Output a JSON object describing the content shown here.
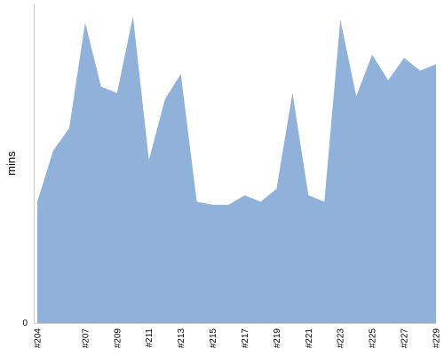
{
  "chart_data": {
    "type": "area",
    "ylabel": "mins",
    "xlabel": "",
    "title": "",
    "grid": false,
    "legend": "none",
    "ylim": [
      0,
      100
    ],
    "y_ticks": [
      0
    ],
    "x_tick_labels": [
      "#204",
      "#207",
      "#209",
      "#211",
      "#213",
      "#215",
      "#217",
      "#219",
      "#221",
      "#223",
      "#225",
      "#227",
      "#229"
    ],
    "x": [
      "#204",
      "#205",
      "#206",
      "#207",
      "#208",
      "#209",
      "#210",
      "#211",
      "#212",
      "#213",
      "#214",
      "#215",
      "#216",
      "#217",
      "#218",
      "#219",
      "#220",
      "#221",
      "#222",
      "#223",
      "#224",
      "#225",
      "#226",
      "#227",
      "#228",
      "#229"
    ],
    "values": [
      38,
      54,
      61,
      94,
      74,
      72,
      96,
      51,
      70,
      78,
      38,
      37,
      37,
      40,
      38,
      42,
      72,
      40,
      38,
      95,
      71,
      84,
      76,
      83,
      79,
      81
    ],
    "series_color": "#8fb1da"
  }
}
